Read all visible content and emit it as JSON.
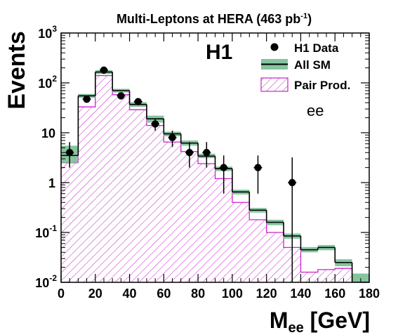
{
  "chart_data": {
    "type": "histogram",
    "title": "Multi-Leptons at HERA (463 pb",
    "title_sup": "-1",
    "title_close": ")",
    "xlabel_main": "M",
    "xlabel_sub": "ee",
    "xlabel_unit": " [GeV]",
    "ylabel": "Events",
    "experiment_label": "H1",
    "channel_label": "ee",
    "y_scale": "log",
    "xlim": [
      0,
      180
    ],
    "ylim": [
      0.01,
      1000
    ],
    "x_ticks": [
      0,
      20,
      40,
      60,
      80,
      100,
      120,
      140,
      160,
      180
    ],
    "y_ticks": [
      {
        "value": 0.01,
        "base": "10",
        "exp": "-2"
      },
      {
        "value": 0.1,
        "base": "10",
        "exp": "-1"
      },
      {
        "value": 1,
        "base": "1",
        "exp": ""
      },
      {
        "value": 10,
        "base": "10",
        "exp": ""
      },
      {
        "value": 100,
        "base": "10",
        "exp": "2"
      },
      {
        "value": 1000,
        "base": "10",
        "exp": "3"
      }
    ],
    "bin_edges": [
      0,
      10,
      20,
      30,
      40,
      50,
      60,
      70,
      80,
      90,
      100,
      110,
      120,
      130,
      140,
      150,
      160,
      170,
      180
    ],
    "series": [
      {
        "name": "H1 Data",
        "kind": "points",
        "x": [
          5,
          15,
          25,
          35,
          45,
          55,
          65,
          75,
          85,
          95,
          115,
          135
        ],
        "y": [
          4,
          47,
          180,
          55,
          42,
          15,
          8,
          4,
          4,
          2,
          2,
          1
        ],
        "y_low": [
          2,
          40,
          167,
          48,
          36,
          11,
          5.2,
          2,
          2,
          0.6,
          0.6,
          0.01
        ],
        "y_high": [
          6.5,
          54,
          193,
          62,
          48,
          19,
          11,
          6.5,
          6.5,
          3.5,
          3.5,
          3.2
        ]
      },
      {
        "name": "All SM",
        "kind": "step",
        "values": [
          3.5,
          55,
          165,
          70,
          37,
          19,
          9.5,
          6.2,
          3.4,
          1.9,
          0.65,
          0.28,
          0.16,
          0.085,
          0.045,
          0.05,
          0.025,
          0.01
        ],
        "band_low": [
          2.5,
          50,
          150,
          64,
          33,
          16,
          8.5,
          5.5,
          3.1,
          1.7,
          0.58,
          0.25,
          0.14,
          0.075,
          0.04,
          0.044,
          0.021,
          0.01
        ],
        "band_high": [
          5.5,
          60,
          180,
          76,
          41,
          22,
          10.5,
          7,
          3.8,
          2.1,
          0.72,
          0.31,
          0.18,
          0.095,
          0.051,
          0.056,
          0.029,
          0.015
        ],
        "color": "#000000",
        "band_color": "#86c49f"
      },
      {
        "name": "Pair Prod.",
        "kind": "hatched",
        "values": [
          2.5,
          33,
          140,
          58,
          29,
          14,
          6.5,
          4.2,
          2.4,
          1.2,
          0.4,
          0.18,
          0.1,
          0.05,
          0.016,
          0.018,
          0.019,
          0.01
        ],
        "color": "#cc22cc"
      }
    ],
    "legend": {
      "position": "top-right",
      "entries": [
        "H1 Data",
        "All SM",
        "Pair Prod."
      ]
    }
  }
}
